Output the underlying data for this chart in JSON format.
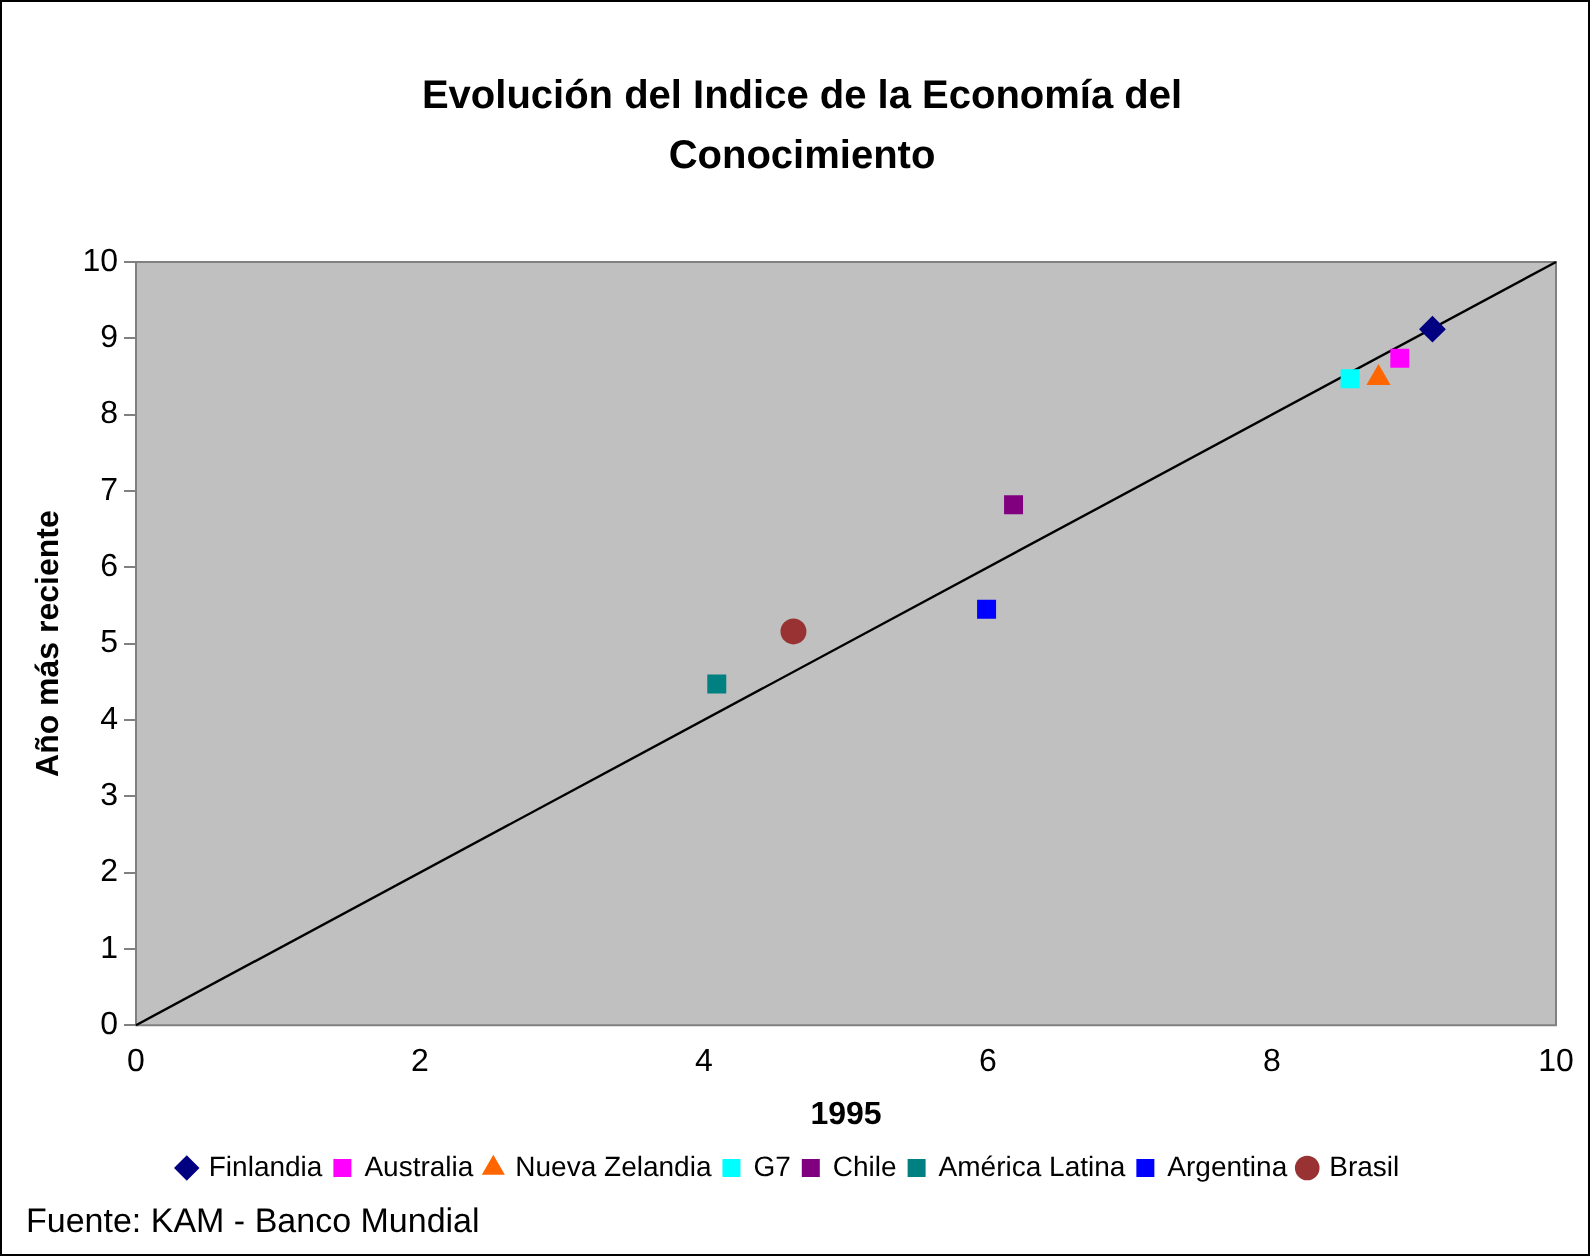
{
  "chart_data": {
    "type": "scatter",
    "title": "Evolución del Indice de la Economía del Conocimiento",
    "xlabel": "1995",
    "ylabel": "Año más reciente",
    "xlim": [
      0,
      10
    ],
    "xticks": [
      0,
      2,
      4,
      6,
      8,
      10
    ],
    "ylim": [
      0,
      10
    ],
    "yticks": [
      0,
      1,
      2,
      3,
      4,
      5,
      6,
      7,
      8,
      9,
      10
    ],
    "grid": false,
    "legend": "bottom",
    "annotations": [
      "Fuente: KAM - Banco Mundial"
    ],
    "series": [
      {
        "name": "Finlandia",
        "color": "#000080",
        "marker": "diamond",
        "x": [
          9.13
        ],
        "values": [
          9.12
        ]
      },
      {
        "name": "Australia",
        "color": "#ff00ff",
        "marker": "square",
        "x": [
          8.9
        ],
        "values": [
          8.74
        ]
      },
      {
        "name": "Nueva Zelandia",
        "color": "#ff6600",
        "marker": "triangle",
        "x": [
          8.75
        ],
        "values": [
          8.48
        ]
      },
      {
        "name": "G7",
        "color": "#00ffff",
        "marker": "square",
        "x": [
          8.55
        ],
        "values": [
          8.47
        ]
      },
      {
        "name": "Chile",
        "color": "#800080",
        "marker": "square",
        "x": [
          6.18
        ],
        "values": [
          6.82
        ]
      },
      {
        "name": "América Latina",
        "color": "#008080",
        "marker": "square",
        "x": [
          4.09
        ],
        "values": [
          4.47
        ]
      },
      {
        "name": "Argentina",
        "color": "#0000ff",
        "marker": "square",
        "x": [
          5.99
        ],
        "values": [
          5.45
        ]
      },
      {
        "name": "Brasil",
        "color": "#993333",
        "marker": "circle",
        "x": [
          4.63
        ],
        "values": [
          5.16
        ]
      },
      {
        "type": "line",
        "color": "#000000",
        "marker": "none",
        "x": [
          0,
          10
        ],
        "values": [
          0,
          10
        ]
      }
    ]
  }
}
